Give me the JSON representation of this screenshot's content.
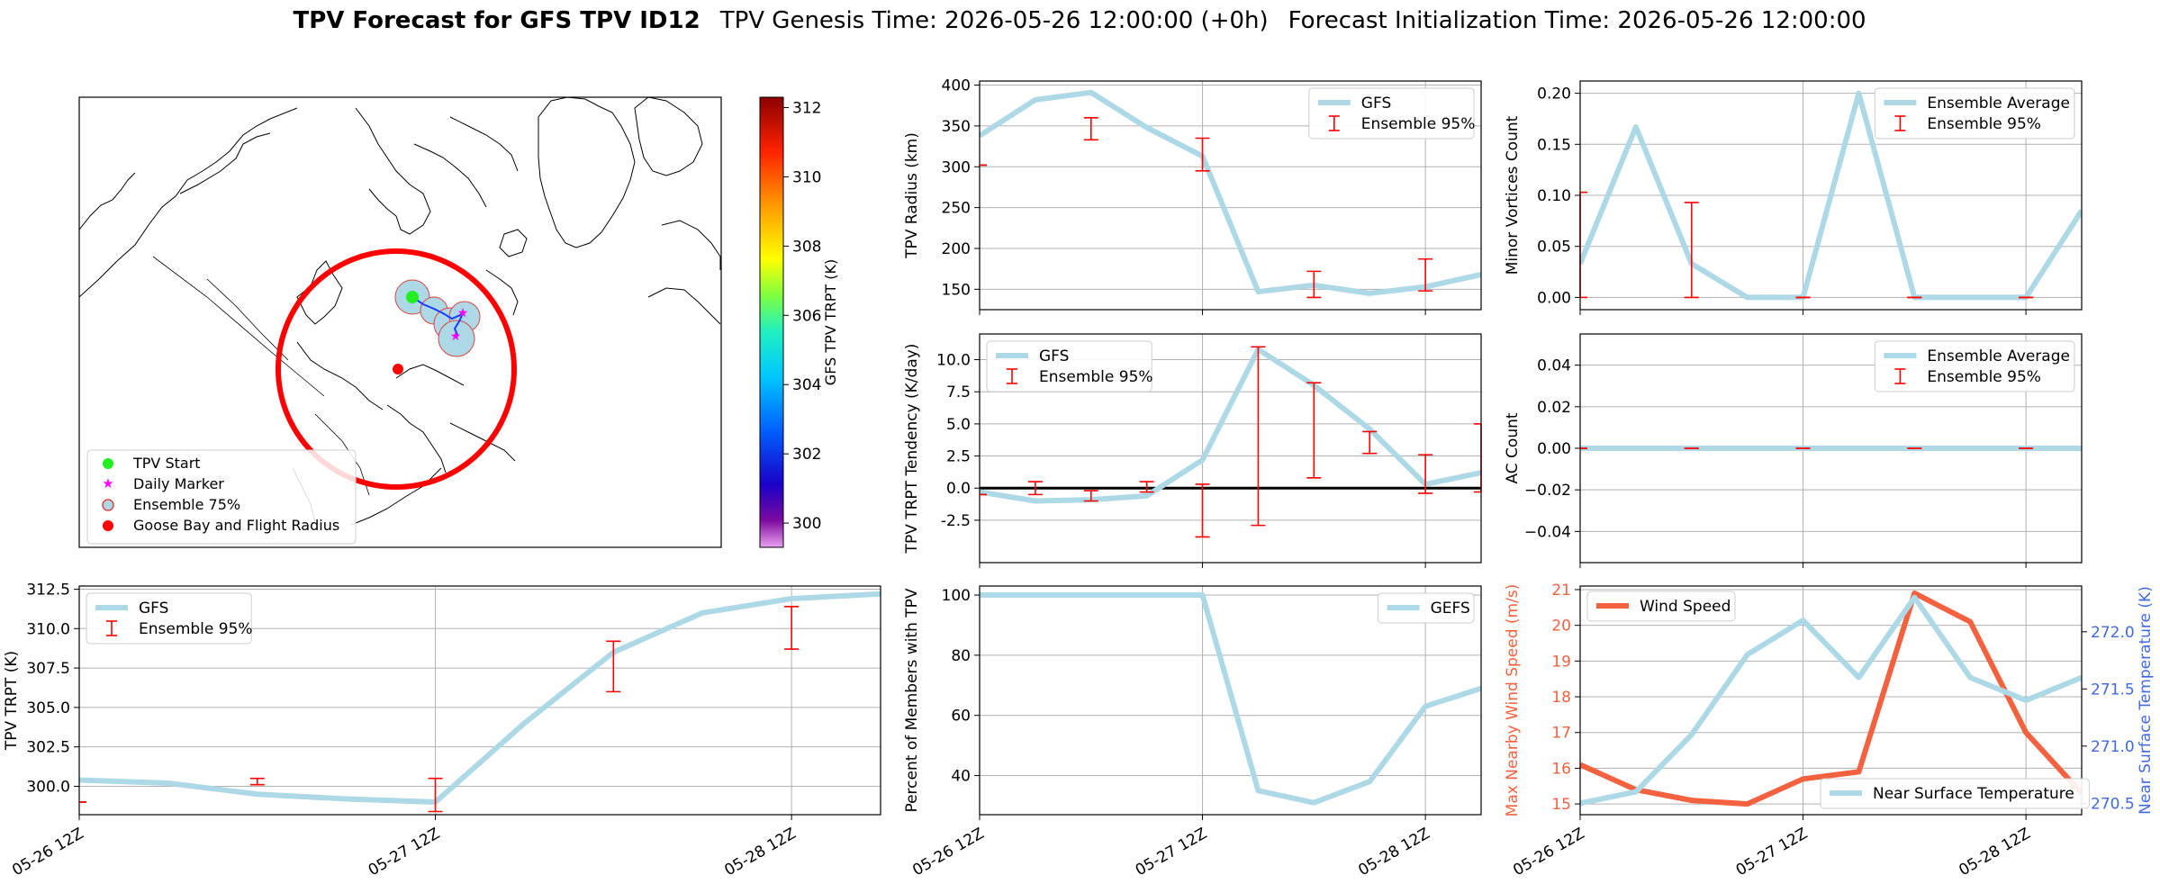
{
  "title": {
    "main": "TPV Forecast for GFS TPV ID12",
    "genesis": "TPV Genesis Time: 2026-05-26 12:00:00 (+0h)",
    "init": "Forecast Initialization Time: 2026-05-26 12:00:00"
  },
  "map": {
    "colorbar_label": "GFS TPV TRPT (K)",
    "colorbar_ticks": [
      "312",
      "310",
      "308",
      "306",
      "304",
      "302",
      "300"
    ],
    "colorbar_range": [
      299.3,
      312.3
    ],
    "legend": [
      "TPV Start",
      "Daily Marker",
      "Ensemble 75%",
      "Goose Bay and Flight Radius"
    ],
    "colors": {
      "start": "#22ee22",
      "marker": "#ff00ff",
      "ensemble": "#add8e6",
      "radius": "#ff0000"
    }
  },
  "colors": {
    "main_line": "#add8e6",
    "err": "#ff0000",
    "wind": "#f4613f",
    "temp_axis": "#4169e1",
    "wind_axis": "#f4613f"
  },
  "chart_data": [
    {
      "id": "trpt",
      "type": "line",
      "ylabel": "TPV TRPT (K)",
      "ylim": [
        298.2,
        312.7
      ],
      "yticks": [
        300.0,
        302.5,
        305.0,
        307.5,
        310.0,
        312.5
      ],
      "ytick_labels": [
        "300.0",
        "302.5",
        "305.0",
        "307.5",
        "310.0",
        "312.5"
      ],
      "xlim": [
        0,
        54
      ],
      "xticks": [
        0,
        24,
        48
      ],
      "xtick_labels": [
        "05-26 12Z",
        "05-27 12Z",
        "05-28 12Z"
      ],
      "series": [
        {
          "name": "GFS",
          "x": [
            0,
            6,
            12,
            18,
            24,
            30,
            36,
            42,
            48,
            54
          ],
          "values": [
            300.4,
            300.2,
            299.5,
            299.2,
            299.0,
            304.0,
            308.5,
            311.0,
            311.9,
            312.2
          ]
        }
      ],
      "errorbars": {
        "name": "Ensemble 95%",
        "x": [
          0,
          12,
          24,
          36,
          48
        ],
        "low": [
          299.0,
          300.1,
          298.4,
          306.0,
          308.7
        ],
        "high": [
          299.0,
          300.5,
          300.5,
          309.2,
          311.4
        ]
      },
      "legend_loc": "upper left"
    },
    {
      "id": "radius",
      "type": "line",
      "ylabel": "TPV Radius (km)",
      "ylim": [
        125,
        405
      ],
      "yticks": [
        150,
        200,
        250,
        300,
        350,
        400
      ],
      "ytick_labels": [
        "150",
        "200",
        "250",
        "300",
        "350",
        "400"
      ],
      "xlim": [
        0,
        54
      ],
      "xticks": [
        0,
        24,
        48
      ],
      "xtick_labels": [
        "",
        "",
        ""
      ],
      "series": [
        {
          "name": "GFS",
          "x": [
            0,
            6,
            12,
            18,
            24,
            30,
            36,
            42,
            48,
            54
          ],
          "values": [
            338,
            382,
            391,
            348,
            313,
            147,
            155,
            145,
            153,
            168
          ]
        }
      ],
      "errorbars": {
        "name": "Ensemble 95%",
        "x": [
          0,
          12,
          24,
          36,
          48
        ],
        "low": [
          302,
          333,
          295,
          140,
          148
        ],
        "high": [
          302,
          360,
          335,
          172,
          187
        ]
      },
      "legend_loc": "upper right"
    },
    {
      "id": "minor",
      "type": "line",
      "ylabel": "Minor Vortices Count",
      "ylim": [
        -0.012,
        0.212
      ],
      "yticks": [
        0.0,
        0.05,
        0.1,
        0.15,
        0.2
      ],
      "ytick_labels": [
        "0.00",
        "0.05",
        "0.10",
        "0.15",
        "0.20"
      ],
      "xlim": [
        0,
        54
      ],
      "xticks": [
        0,
        24,
        48
      ],
      "xtick_labels": [
        "",
        "",
        ""
      ],
      "series": [
        {
          "name": "Ensemble Average",
          "x": [
            0,
            6,
            12,
            18,
            24,
            30,
            36,
            42,
            48,
            54
          ],
          "values": [
            0.033,
            0.167,
            0.033,
            0.0,
            0.0,
            0.2,
            0.0,
            0.0,
            0.0,
            0.085
          ]
        }
      ],
      "errorbars": {
        "name": "Ensemble 95%",
        "x": [
          0,
          12,
          24,
          36,
          48
        ],
        "low": [
          0.0,
          0.0,
          0.0,
          0.0,
          0.0
        ],
        "high": [
          0.103,
          0.093,
          0.0,
          0.0,
          0.0
        ]
      },
      "legend_loc": "upper right"
    },
    {
      "id": "tend",
      "type": "line",
      "ylabel": "TPV TRPT Tendency (K/day)",
      "ylim": [
        -5.8,
        12.0
      ],
      "yticks": [
        -2.5,
        0.0,
        2.5,
        5.0,
        7.5,
        10.0
      ],
      "ytick_labels": [
        "-2.5",
        "0.0",
        "2.5",
        "5.0",
        "7.5",
        "10.0"
      ],
      "xlim": [
        0,
        54
      ],
      "xticks": [
        0,
        24,
        48
      ],
      "xtick_labels": [
        "",
        "",
        ""
      ],
      "hline": 0,
      "series": [
        {
          "name": "GFS",
          "x": [
            0,
            6,
            12,
            18,
            24,
            30,
            36,
            42,
            48,
            54
          ],
          "values": [
            -0.3,
            -1.0,
            -0.9,
            -0.6,
            2.2,
            10.8,
            8.0,
            4.6,
            0.3,
            1.2
          ]
        }
      ],
      "errorbars": {
        "name": "Ensemble 95%",
        "x": [
          0,
          6,
          12,
          18,
          24,
          30,
          36,
          42,
          48,
          54
        ],
        "low": [
          -0.5,
          -0.5,
          -1.0,
          -0.3,
          -3.8,
          -2.9,
          0.8,
          2.7,
          -0.4,
          -0.3
        ],
        "high": [
          -0.5,
          0.5,
          -0.2,
          0.5,
          0.3,
          11.0,
          8.2,
          4.4,
          2.6,
          5.0
        ]
      },
      "legend_loc": "upper left"
    },
    {
      "id": "ac",
      "type": "line",
      "ylabel": "AC Count",
      "ylim": [
        -0.055,
        0.055
      ],
      "yticks": [
        -0.04,
        -0.02,
        0.0,
        0.02,
        0.04
      ],
      "ytick_labels": [
        "−0.04",
        "−0.02",
        "0.00",
        "0.02",
        "0.04"
      ],
      "xlim": [
        0,
        54
      ],
      "xticks": [
        0,
        24,
        48
      ],
      "xtick_labels": [
        "",
        "",
        ""
      ],
      "series": [
        {
          "name": "Ensemble Average",
          "x": [
            0,
            6,
            12,
            18,
            24,
            30,
            36,
            42,
            48,
            54
          ],
          "values": [
            0,
            0,
            0,
            0,
            0,
            0,
            0,
            0,
            0,
            0
          ]
        }
      ],
      "errorbars": {
        "name": "Ensemble 95%",
        "x": [
          0,
          12,
          24,
          36,
          48
        ],
        "low": [
          0,
          0,
          0,
          0,
          0
        ],
        "high": [
          0,
          0,
          0,
          0,
          0
        ]
      },
      "legend_loc": "upper right"
    },
    {
      "id": "pct",
      "type": "line",
      "ylabel": "Percent of Members with TPV",
      "ylim": [
        27,
        103
      ],
      "yticks": [
        40,
        60,
        80,
        100
      ],
      "ytick_labels": [
        "40",
        "60",
        "80",
        "100"
      ],
      "xlim": [
        0,
        54
      ],
      "xticks": [
        0,
        24,
        48
      ],
      "xtick_labels": [
        "05-26 12Z",
        "05-27 12Z",
        "05-28 12Z"
      ],
      "series": [
        {
          "name": "GEFS",
          "x": [
            0,
            6,
            12,
            18,
            24,
            30,
            36,
            42,
            48,
            54
          ],
          "values": [
            100,
            100,
            100,
            100,
            100,
            35,
            31,
            38,
            63,
            69
          ]
        }
      ],
      "legend_loc": "upper right"
    },
    {
      "id": "wind",
      "type": "line",
      "ylabel": "Max Nearby Wind Speed (m/s)",
      "ylabel_right": "Near Surface Temperature (K)",
      "ylim": [
        14.7,
        21.1
      ],
      "yticks": [
        15,
        16,
        17,
        18,
        19,
        20,
        21
      ],
      "ytick_labels": [
        "15",
        "16",
        "17",
        "18",
        "19",
        "20",
        "21"
      ],
      "ylim_right": [
        270.4,
        272.4
      ],
      "yticks_right": [
        270.5,
        271.0,
        271.5,
        272.0
      ],
      "ytick_labels_right": [
        "270.5",
        "271.0",
        "271.5",
        "272.0"
      ],
      "xlim": [
        0,
        54
      ],
      "xticks": [
        0,
        24,
        48
      ],
      "xtick_labels": [
        "05-26 12Z",
        "05-27 12Z",
        "05-28 12Z"
      ],
      "series": [
        {
          "name": "Wind Speed",
          "axis": "left",
          "x": [
            0,
            6,
            12,
            18,
            24,
            30,
            36,
            42,
            48,
            54
          ],
          "values": [
            16.1,
            15.4,
            15.1,
            15.0,
            15.7,
            15.9,
            20.9,
            20.1,
            17.0,
            15.3
          ]
        },
        {
          "name": "Near Surface Temperature",
          "axis": "right",
          "x": [
            0,
            6,
            12,
            18,
            24,
            30,
            36,
            42,
            48,
            54
          ],
          "values": [
            270.5,
            270.6,
            271.1,
            271.8,
            272.1,
            271.6,
            272.3,
            271.6,
            271.4,
            271.6
          ]
        }
      ],
      "legend_loc": "upper left / lower right"
    }
  ]
}
